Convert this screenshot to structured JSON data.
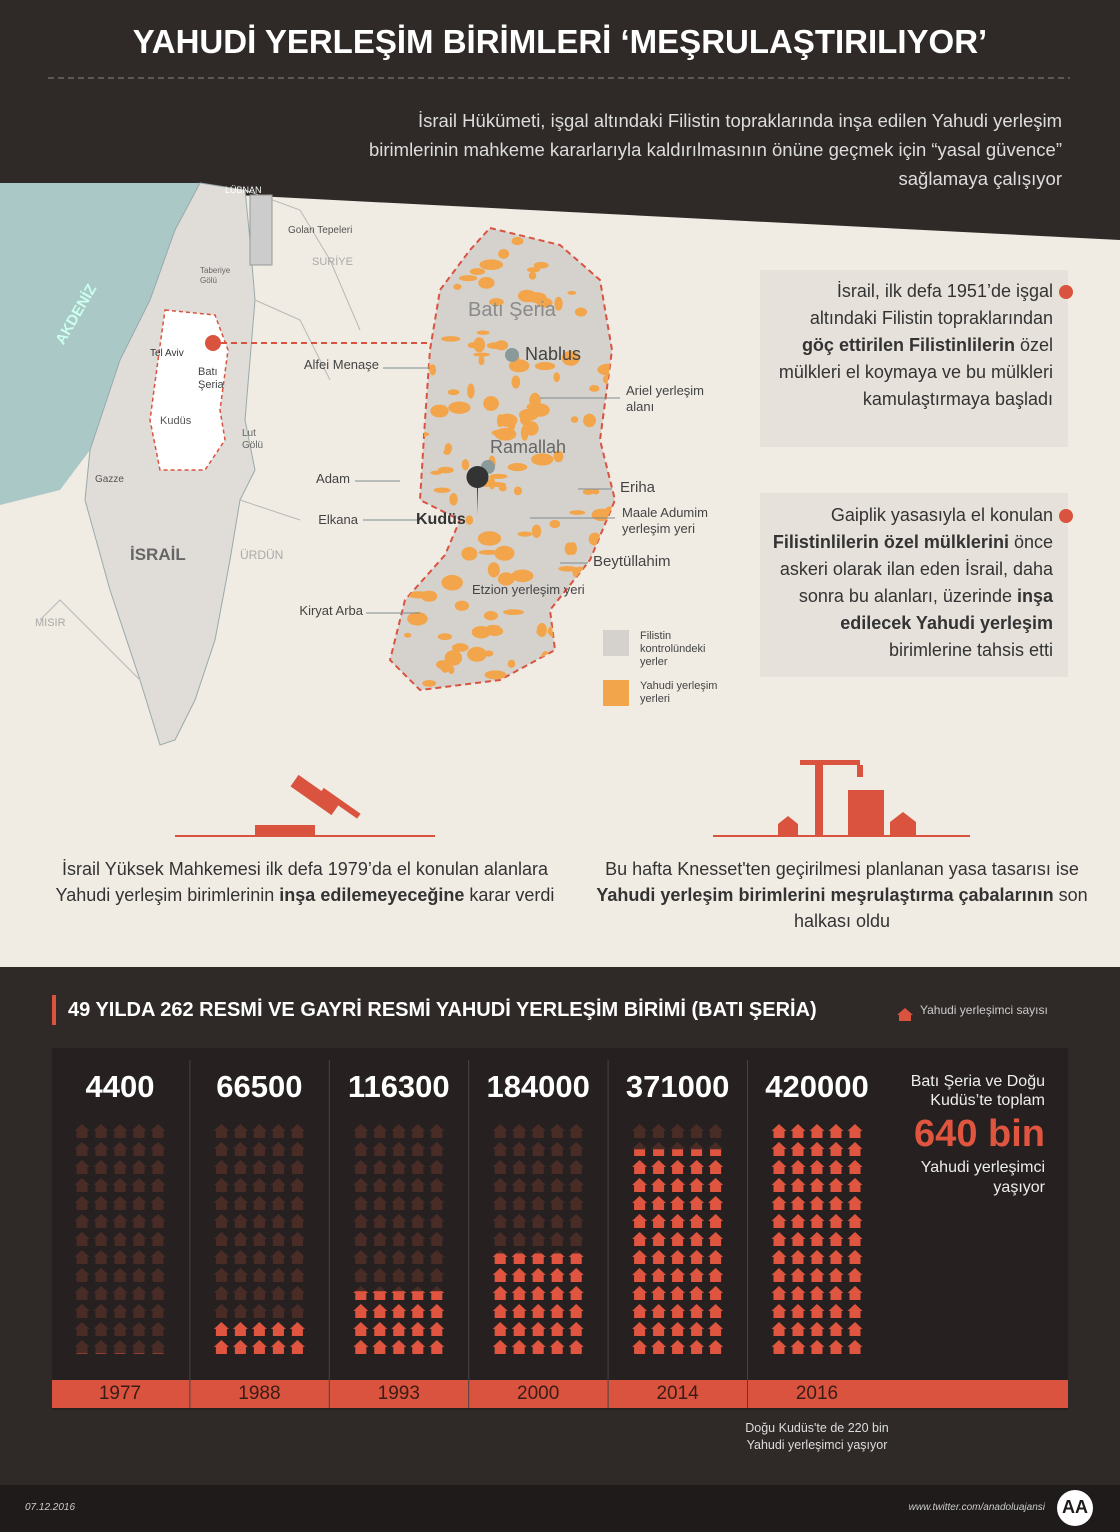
{
  "header": {
    "title": "YAHUDİ YERLEŞİM BİRİMLERİ ‘MEŞRULAŞTIRILIYOR’",
    "subtitle": "İsrail Hükümeti, işgal altındaki Filistin topraklarında inşa edilen Yahudi yerleşim birimlerinin mahkeme kararlarıyla kaldırılmasının önüne geçmek için “yasal güvence” sağlamaya çalışıyor"
  },
  "region_map": {
    "labels": [
      "LÜBNAN",
      "Golan Tepeleri",
      "SURİYE",
      "Taberiye Gölü",
      "AKDENİZ",
      "Tel Aviv",
      "Batı Şeria",
      "Kudüs",
      "Lut Gölü",
      "Gazze",
      "İSRAİL",
      "ÜRDÜN",
      "MISIR"
    ]
  },
  "west_bank_map": {
    "labels": [
      "Batı Şeria",
      "Nablus",
      "Ramallah",
      "Kudüs",
      "Alfei Menaşe",
      "Ariel yerleşim alanı",
      "Adam",
      "Eriha",
      "Elkana",
      "Maale Adumim yerleşim yeri",
      "Beytüllahim",
      "Etzion yerleşim yeri",
      "Kiryat Arba"
    ],
    "legend": [
      "Filistin kontrolündeki yerler",
      "Yahudi yerleşim yerleri"
    ]
  },
  "notes": [
    {
      "parts": [
        "İsrail, ilk defa 1951’de işgal altındaki Filistin topraklarından ",
        "göç ettirilen Filistinlilerin",
        " özel mülkleri el koymaya ve bu mülkleri kamulaştırmaya başladı"
      ]
    },
    {
      "parts": [
        "Gaiplik yasasıyla el konulan ",
        "Filistinlilerin özel mülklerini",
        " önce askeri olarak ilan eden İsrail, daha sonra bu alanları, üzerinde ",
        "inşa edilecek Yahudi yerleşim",
        " birimlerine tahsis etti"
      ]
    }
  ],
  "bottom_notes": [
    {
      "parts": [
        "İsrail Yüksek Mahkemesi ilk defa 1979’da el konulan alanlara Yahudi yerleşim birimlerinin ",
        "inşa edilemeyeceğine",
        " karar verdi"
      ]
    },
    {
      "parts": [
        "Bu hafta Knesset'ten geçirilmesi planlanan yasa tasarısı ise ",
        "Yahudi yerleşim birimlerini meşrulaştırma çabalarının",
        " son halkası oldu"
      ]
    }
  ],
  "chart_data": {
    "type": "pictogram",
    "title": "49 YILDA 262 RESMİ VE GAYRİ RESMİ YAHUDİ YERLEŞİM BİRİMİ (BATI ŞERİA)",
    "legend": "Yahudi yerleşimci sayısı",
    "categories": [
      "1977",
      "1988",
      "1993",
      "2000",
      "2014",
      "2016"
    ],
    "values": [
      4400,
      66500,
      116300,
      184000,
      371000,
      420000
    ],
    "color": "#e0553f",
    "annotation": "Doğu Kudüs'te de 220 bin Yahudi yerleşimci yaşıyor",
    "side_note": {
      "before": "Batı Şeria ve Doğu Kudüs’te toplam",
      "highlight": "640 bin",
      "after": "Yahudi yerleşimci yaşıyor"
    }
  },
  "footer": {
    "date": "07.12.2016",
    "link": "www.twitter.com/anadoluajansi",
    "logo": "AA"
  }
}
